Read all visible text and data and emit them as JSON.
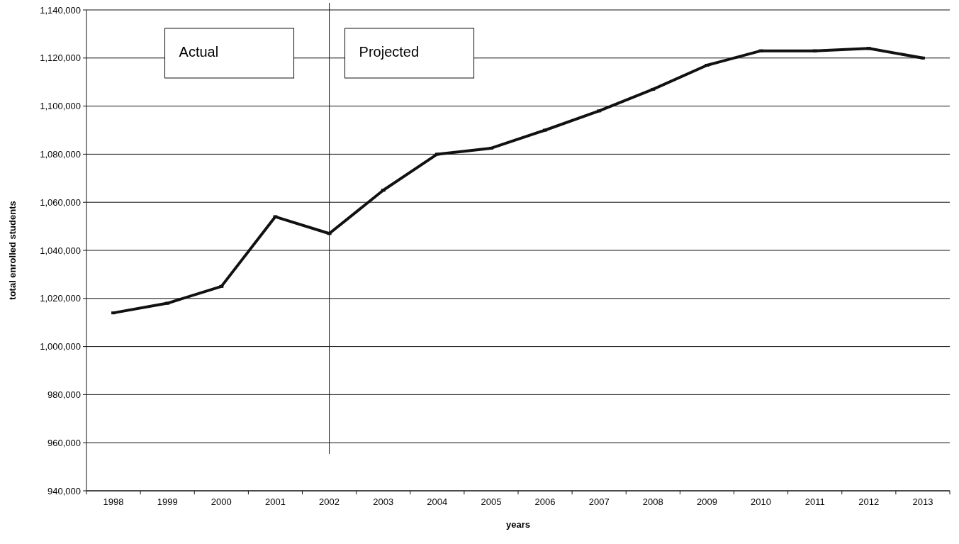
{
  "chart_data": {
    "type": "line",
    "xlabel": "years",
    "ylabel": "total enrolled students",
    "categories": [
      "1998",
      "1999",
      "2000",
      "2001",
      "2002",
      "2003",
      "2004",
      "2005",
      "2006",
      "2007",
      "2008",
      "2009",
      "2010",
      "2011",
      "2012",
      "2013"
    ],
    "series": [
      {
        "color": "#111111",
        "values": [
          1014000,
          1018000,
          1025000,
          1054000,
          1047000,
          1065000,
          1080000,
          1082500,
          1090000,
          1098000,
          1107000,
          1117000,
          1123000,
          1123000,
          1124000,
          1120000
        ]
      }
    ],
    "ylim": [
      940000,
      1140000
    ],
    "yticks": [
      {
        "value": 940000,
        "label": "940,000"
      },
      {
        "value": 960000,
        "label": "960,000"
      },
      {
        "value": 980000,
        "label": "980,000"
      },
      {
        "value": 1000000,
        "label": "1,000,000"
      },
      {
        "value": 1020000,
        "label": "1,020,000"
      },
      {
        "value": 1040000,
        "label": "1,040,000"
      },
      {
        "value": 1060000,
        "label": "1,060,000"
      },
      {
        "value": 1080000,
        "label": "1,080,000"
      },
      {
        "value": 1100000,
        "label": "1,100,000"
      },
      {
        "value": 1120000,
        "label": "1,120,000"
      },
      {
        "value": 1140000,
        "label": "1,140,000"
      }
    ],
    "grid": "y",
    "marker": "square",
    "line_style": "solid",
    "ref_lines": [
      {
        "axis": "x",
        "value": "2002",
        "color": "#111111"
      }
    ],
    "annotations": [
      "Actual",
      "Projected"
    ]
  }
}
